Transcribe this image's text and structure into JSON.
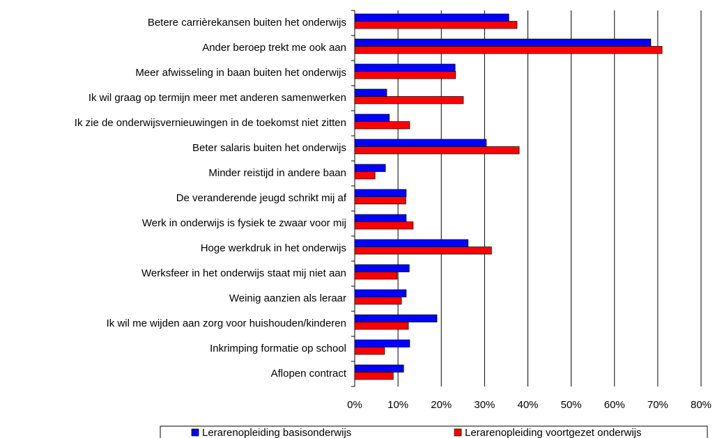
{
  "chart_data": {
    "type": "barh",
    "categories": [
      "Betere carrièrekansen buiten het onderwijs",
      "Ander beroep trekt me ook aan",
      "Meer afwisseling in baan buiten het onderwijs",
      "Ik wil graag op termijn meer met anderen samenwerken",
      "Ik zie de onderwijsvernieuwingen in de toekomst niet zitten",
      "Beter salaris buiten het onderwijs",
      "Minder reistijd in andere baan",
      "De veranderende jeugd schrikt mij af",
      "Werk in onderwijs is fysiek te zwaar voor mij",
      "Hoge werkdruk in het onderwijs",
      "Werksfeer in het onderwijs staat mij niet aan",
      "Weinig aanzien als leraar",
      "Ik wil me wijden aan zorg voor huishouden/kinderen",
      "Inkrimping formatie op school",
      "Aflopen contract"
    ],
    "series": [
      {
        "name": "Lerarenopleiding basisonderwijs",
        "color": "#0000ff",
        "values": [
          35.6,
          68.4,
          23.2,
          7.4,
          8.0,
          30.4,
          7.1,
          11.9,
          11.9,
          26.2,
          12.6,
          11.9,
          19.0,
          12.7,
          11.3
        ]
      },
      {
        "name": "Lerarenopleiding voortgezet onderwijs",
        "color": "#ff0000",
        "values": [
          37.5,
          71.0,
          23.3,
          25.1,
          12.7,
          38.0,
          4.7,
          11.8,
          13.5,
          31.6,
          9.8,
          10.8,
          12.4,
          6.9,
          8.9
        ]
      }
    ],
    "xlim": [
      0,
      80
    ],
    "xticks": [
      {
        "value": 0,
        "label": "0%"
      },
      {
        "value": 10,
        "label": "10%"
      },
      {
        "value": 20,
        "label": "20%"
      },
      {
        "value": 30,
        "label": "30%"
      },
      {
        "value": 40,
        "label": "40%"
      },
      {
        "value": 50,
        "label": "50%"
      },
      {
        "value": 60,
        "label": "60%"
      },
      {
        "value": 70,
        "label": "70%"
      },
      {
        "value": 80,
        "label": "80%"
      }
    ],
    "grid": true
  }
}
